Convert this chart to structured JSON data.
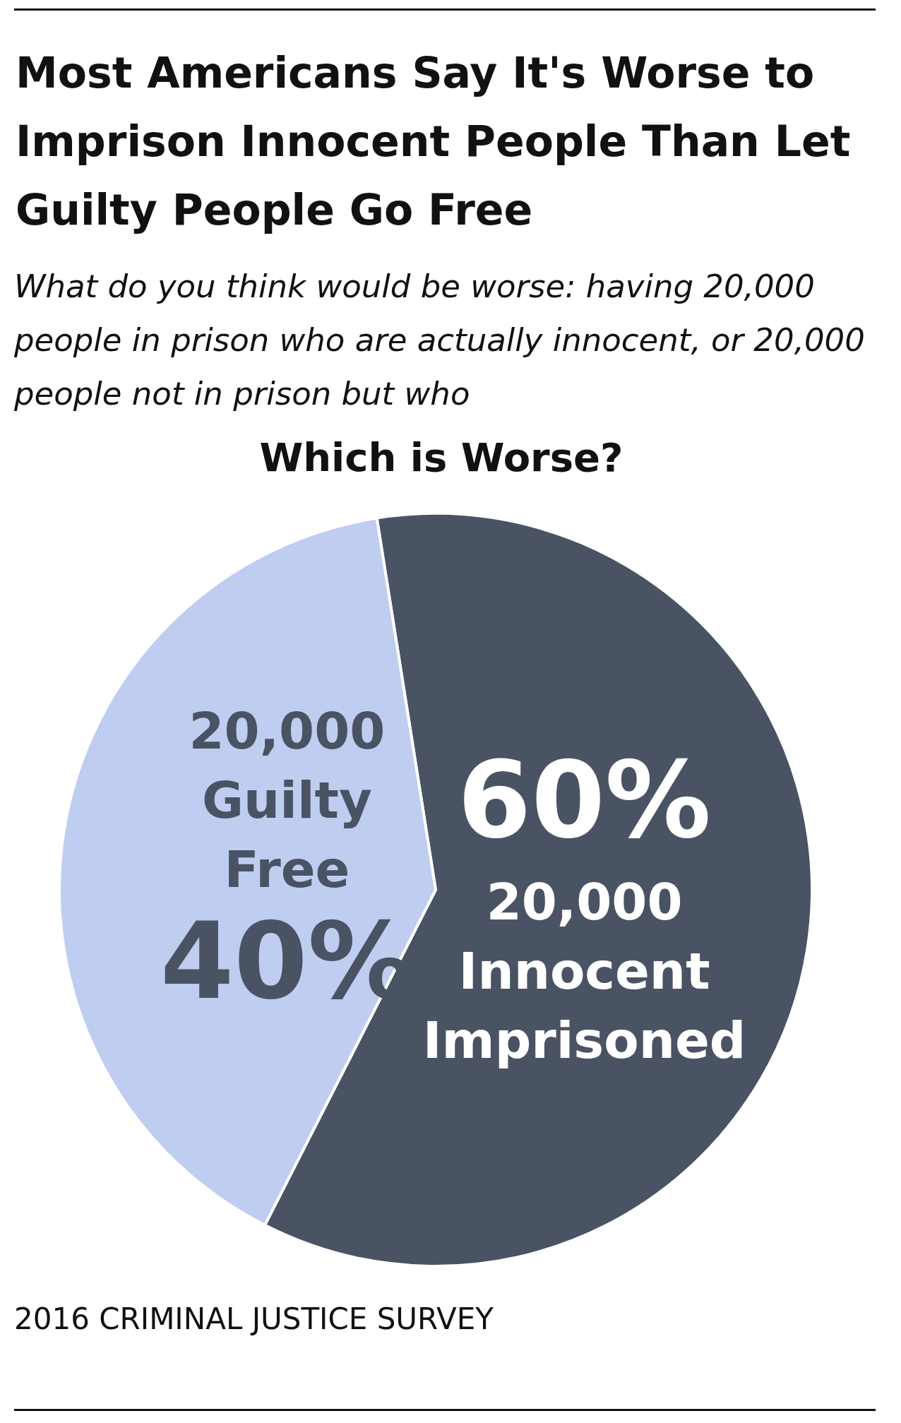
{
  "chart_data": {
    "type": "pie",
    "title": "Most Americans Say It's Worse to Imprison Innocent People Than Let Guilty People Go Free",
    "subtitle": "What do you think would be worse: having 20,000 people in prison who are actually innocent, or 20,000 people not in prison but who",
    "legend_title": "Which is Worse?",
    "categories": [
      "20,000 Innocent Imprisoned",
      "20,000 Guilty Free"
    ],
    "values": [
      60,
      40
    ],
    "colors": [
      "#4a5363",
      "#bfcdf0"
    ],
    "value_labels": [
      "60%",
      "40%"
    ],
    "annotations": [
      "2016 CRIMINAL JUSTICE SURVEY"
    ]
  }
}
